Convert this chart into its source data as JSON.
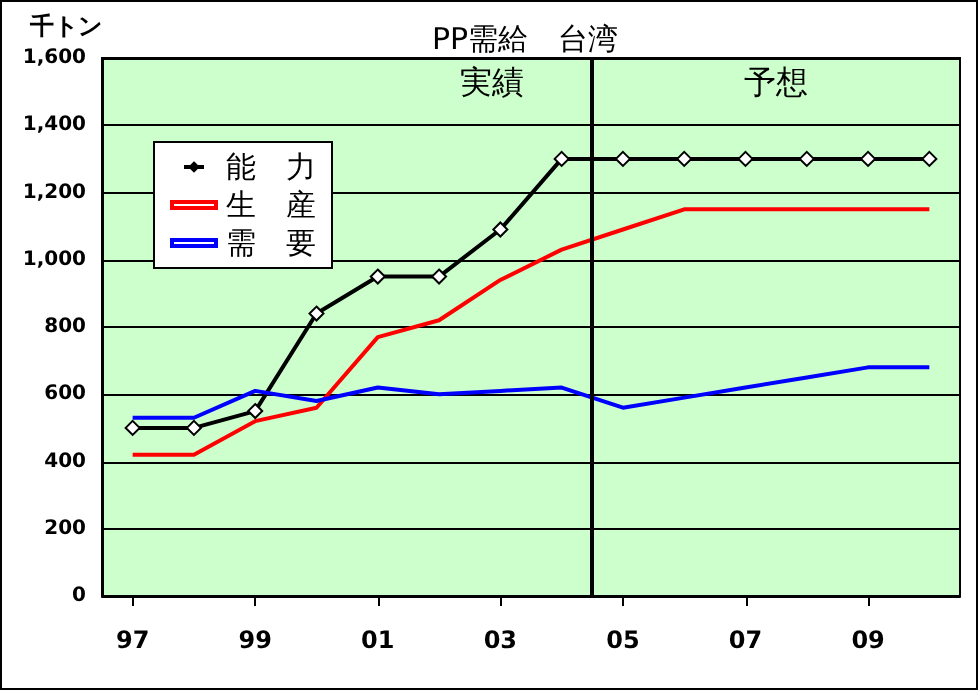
{
  "chart_data": {
    "type": "line",
    "title": "PP需給　台湾",
    "ylabel": "千トン",
    "x": [
      1997,
      1998,
      1999,
      2000,
      2001,
      2002,
      2003,
      2004,
      2005,
      2006,
      2007,
      2008,
      2009,
      2010
    ],
    "xlim": [
      1996.5,
      2010.5
    ],
    "xticks": [
      {
        "value": 1997,
        "label": "97"
      },
      {
        "value": 1999,
        "label": "99"
      },
      {
        "value": 2001,
        "label": "01"
      },
      {
        "value": 2003,
        "label": "03"
      },
      {
        "value": 2005,
        "label": "05"
      },
      {
        "value": 2007,
        "label": "07"
      },
      {
        "value": 2009,
        "label": "09"
      }
    ],
    "ylim": [
      0,
      1600
    ],
    "yticks": [
      {
        "value": 0,
        "label": "0"
      },
      {
        "value": 200,
        "label": "200"
      },
      {
        "value": 400,
        "label": "400"
      },
      {
        "value": 600,
        "label": "600"
      },
      {
        "value": 800,
        "label": "800"
      },
      {
        "value": 1000,
        "label": "1,000"
      },
      {
        "value": 1200,
        "label": "1,200"
      },
      {
        "value": 1400,
        "label": "1,400"
      },
      {
        "value": 1600,
        "label": "1,600"
      }
    ],
    "grid": "y",
    "legend": "top left",
    "line_style": "solid",
    "series": [
      {
        "name": "能　力",
        "color": "#000000",
        "marker": "diamond",
        "values": [
          500,
          500,
          550,
          840,
          950,
          950,
          1090,
          1300,
          1300,
          1300,
          1300,
          1300,
          1300,
          1300
        ]
      },
      {
        "name": "生　産",
        "color": "#ff0000",
        "marker": "none",
        "values": [
          420,
          420,
          520,
          560,
          770,
          820,
          940,
          1030,
          1090,
          1150,
          1150,
          1150,
          1150,
          1150
        ]
      },
      {
        "name": "需　要",
        "color": "#0000ff",
        "marker": "none",
        "values": [
          530,
          530,
          610,
          580,
          620,
          600,
          610,
          620,
          560,
          590,
          620,
          650,
          680,
          680
        ]
      }
    ],
    "ref_lines": [
      {
        "axis": "x",
        "value": 2004.5,
        "color": "#000000"
      }
    ],
    "annotations": [
      "実績",
      "予想"
    ]
  }
}
